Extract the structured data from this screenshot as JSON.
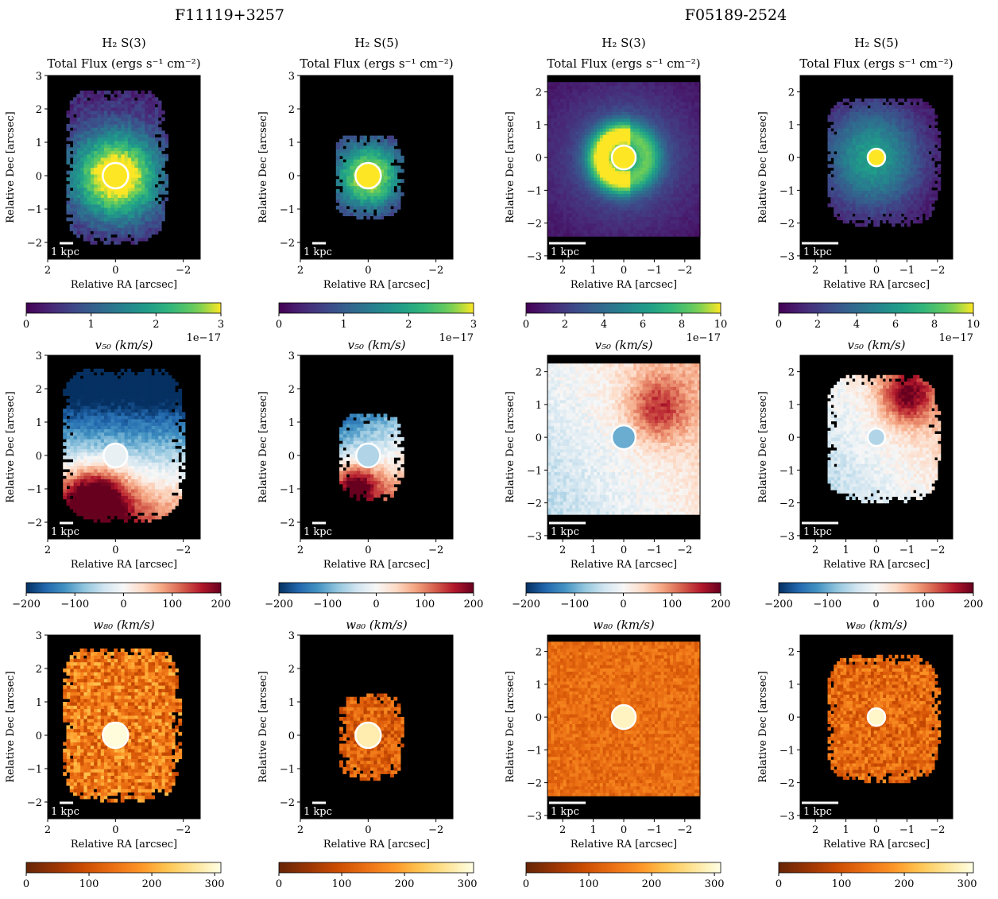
{
  "figure": {
    "galaxy_titles": [
      "F11119+3257",
      "F05189-2524"
    ],
    "row_titles": {
      "flux": [
        "H₂ S(3)",
        "H₂ S(5)",
        "H₂ S(3)",
        "H₂ S(5)"
      ],
      "flux_subtitle": "Total Flux (ergs s⁻¹ cm⁻²)",
      "v50": "v₅₀ (km/s)",
      "w80": "w₈₀ (km/s)"
    },
    "xlabel": "Relative RA [arcsec]",
    "ylabel": "Relative Dec [arcsec]",
    "scalebar_label": "1 kpc",
    "colors": {
      "background_map": "#000000",
      "nucleus_outline": "#ffffff"
    }
  },
  "chart_data": [
    {
      "type": "heatmap",
      "galaxy": "F11119+3257",
      "line": "H₂ S(3)",
      "quantity": "Total Flux",
      "xlim": [
        2,
        -2.5
      ],
      "ylim": [
        -2.5,
        3
      ],
      "xticks": [
        "2",
        "0",
        "−2"
      ],
      "xtick_values": [
        2,
        0,
        -2
      ],
      "yticks": [
        "−2",
        "−1",
        "0",
        "1",
        "2",
        "3"
      ],
      "ytick_values": [
        -2,
        -1,
        0,
        1,
        2,
        3
      ],
      "colormap": "viridis",
      "clim": [
        0,
        3
      ],
      "colorbar_ticks": [
        "0",
        "1",
        "2",
        "3"
      ],
      "colorbar_tick_values": [
        0,
        1,
        2,
        3
      ],
      "colorbar_offset": "1e−17",
      "scalebar_kpc_arcsec": 0.4,
      "rows": [
        "......................................................",
        "............m.m.m..mmm.mmmm..........................",
        ".........mmm.mmmmmmmmmmmmm.m.........................",
        "..........mmmmmmmmmmmmmmmmmm..........",
        "........mmmmmmmmmmmmmmmmmmmmm.........",
        ".......mmmmmmmmmmmmmmmmmmmmmm.........",
        ".......mmmmmmmmmmmmmmmmmmmmmm.........",
        "......mmmmmmmmmmmmmmmmmmmmmm..........",
        "......mmmmmmmmmmmmmmmmmmmmmmm.........",
        ".......mmmmmmmmmmmmmmmmmmmmmm.........",
        "........mmmmmmmmmmmmmmmmmmmmm.........",
        "........mmmmmmmmmmmmmmmmmmmm..........",
        "........m.mmmmmmmmmmmmmmmmmm..........",
        ".........mmmm.mmmmm.mmm.m.............",
        "......................................"
      ],
      "field": {
        "kind": "blob",
        "cx": 0,
        "cy": 0,
        "peak": 3.2,
        "scale": 0.9,
        "floor": 0.35
      },
      "mask": {
        "xmin": -1.55,
        "xmax": 1.45,
        "ymin": -2.05,
        "ymax": 2.55,
        "ragged": true
      },
      "nucleus": {
        "x": 0,
        "y": 0,
        "value": 3.0
      }
    },
    {
      "type": "heatmap",
      "galaxy": "F11119+3257",
      "line": "H₂ S(5)",
      "quantity": "Total Flux",
      "xlim": [
        2,
        -2.5
      ],
      "ylim": [
        -2.5,
        3
      ],
      "xticks": [
        "2",
        "0",
        "−2"
      ],
      "xtick_values": [
        2,
        0,
        -2
      ],
      "yticks": [
        "−2",
        "−1",
        "0",
        "1",
        "2",
        "3"
      ],
      "ytick_values": [
        -2,
        -1,
        0,
        1,
        2,
        3
      ],
      "colormap": "viridis",
      "clim": [
        0,
        3
      ],
      "colorbar_ticks": [
        "0",
        "1",
        "2",
        "3"
      ],
      "colorbar_tick_values": [
        0,
        1,
        2,
        3
      ],
      "colorbar_offset": "1e−17",
      "scalebar_kpc_arcsec": 0.4,
      "field": {
        "kind": "blob",
        "cx": 0,
        "cy": 0,
        "peak": 2.8,
        "scale": 0.7,
        "floor": 0.3
      },
      "mask": {
        "xmin": -1.05,
        "xmax": 0.95,
        "ymin": -1.3,
        "ymax": 1.2,
        "ragged": true
      },
      "nucleus": {
        "x": 0,
        "y": 0,
        "value": 3.0
      }
    },
    {
      "type": "heatmap",
      "galaxy": "F05189-2524",
      "line": "H₂ S(3)",
      "quantity": "Total Flux",
      "xlim": [
        2.5,
        -2.5
      ],
      "ylim": [
        -3.1,
        2.5
      ],
      "xticks": [
        "2",
        "1",
        "0",
        "−1",
        "−2"
      ],
      "xtick_values": [
        2,
        1,
        0,
        -1,
        -2
      ],
      "yticks": [
        "−3",
        "−2",
        "−1",
        "0",
        "1",
        "2"
      ],
      "ytick_values": [
        -3,
        -2,
        -1,
        0,
        1,
        2
      ],
      "colormap": "viridis",
      "clim": [
        0,
        10
      ],
      "colorbar_ticks": [
        "0",
        "2",
        "4",
        "6",
        "8",
        "10"
      ],
      "colorbar_tick_values": [
        0,
        2,
        4,
        6,
        8,
        10
      ],
      "colorbar_offset": "1e−17",
      "scalebar_kpc_arcsec": 1.2,
      "field": {
        "kind": "ring",
        "cx": 0,
        "cy": 0,
        "peak": 9.0,
        "scale": 1.5,
        "floor": 0.5
      },
      "mask": {
        "xmin": -2.5,
        "xmax": 2.5,
        "ymin": -2.4,
        "ymax": 2.25,
        "ragged": false
      },
      "nucleus": {
        "x": 0,
        "y": 0,
        "value": 10
      }
    },
    {
      "type": "heatmap",
      "galaxy": "F05189-2524",
      "line": "H₂ S(5)",
      "quantity": "Total Flux",
      "xlim": [
        2.5,
        -2.5
      ],
      "ylim": [
        -3.1,
        2.5
      ],
      "xticks": [
        "2",
        "1",
        "0",
        "−1",
        "−2"
      ],
      "xtick_values": [
        2,
        1,
        0,
        -1,
        -2
      ],
      "yticks": [
        "−3",
        "−2",
        "−1",
        "0",
        "1",
        "2"
      ],
      "ytick_values": [
        -3,
        -2,
        -1,
        0,
        1,
        2
      ],
      "colormap": "viridis",
      "clim": [
        0,
        10
      ],
      "colorbar_ticks": [
        "0",
        "2",
        "4",
        "6",
        "8",
        "10"
      ],
      "colorbar_tick_values": [
        0,
        2,
        4,
        6,
        8,
        10
      ],
      "colorbar_offset": "1e−17",
      "scalebar_kpc_arcsec": 1.2,
      "field": {
        "kind": "blob",
        "cx": 0.15,
        "cy": 0,
        "peak": 6.0,
        "scale": 1.1,
        "floor": 0.4
      },
      "mask": {
        "xmin": -2.1,
        "xmax": 1.6,
        "ymin": -2.1,
        "ymax": 1.8,
        "ragged": true
      },
      "nucleus": {
        "x": 0,
        "y": 0,
        "value": 10
      }
    },
    {
      "type": "heatmap",
      "galaxy": "F11119+3257",
      "line": "H₂ S(3)",
      "quantity": "v50",
      "xlim": [
        2,
        -2.5
      ],
      "ylim": [
        -2.5,
        3
      ],
      "xticks": [
        "2",
        "0",
        "−2"
      ],
      "xtick_values": [
        2,
        0,
        -2
      ],
      "yticks": [
        "−2",
        "−1",
        "0",
        "1",
        "2",
        "3"
      ],
      "ytick_values": [
        -2,
        -1,
        0,
        1,
        2,
        3
      ],
      "colormap": "RdBu_r",
      "clim": [
        -200,
        200
      ],
      "colorbar_ticks": [
        "−200",
        "−100",
        "0",
        "100",
        "200"
      ],
      "colorbar_tick_values": [
        -200,
        -100,
        0,
        100,
        200
      ],
      "colorbar_offset": "",
      "scalebar_kpc_arcsec": 0.4,
      "field": {
        "kind": "gradient",
        "base": -60,
        "gx": 0,
        "gy": -90,
        "blob": {
          "x": 0.6,
          "y": -1.4,
          "amp": 260,
          "s": 0.7
        }
      },
      "mask": {
        "xmin": -2.05,
        "xmax": 1.55,
        "ymin": -2.0,
        "ymax": 2.6,
        "ragged": true
      },
      "nucleus": {
        "x": 0,
        "y": 0,
        "value": -15
      }
    },
    {
      "type": "heatmap",
      "galaxy": "F11119+3257",
      "line": "H₂ S(5)",
      "quantity": "v50",
      "xlim": [
        2,
        -2.5
      ],
      "ylim": [
        -2.5,
        3
      ],
      "xticks": [
        "2",
        "0",
        "−2"
      ],
      "xtick_values": [
        2,
        0,
        -2
      ],
      "yticks": [
        "−2",
        "−1",
        "0",
        "1",
        "2",
        "3"
      ],
      "ytick_values": [
        -2,
        -1,
        0,
        1,
        2,
        3
      ],
      "colormap": "RdBu_r",
      "clim": [
        -200,
        200
      ],
      "colorbar_ticks": [
        "−200",
        "−100",
        "0",
        "100",
        "200"
      ],
      "colorbar_tick_values": [
        -200,
        -100,
        0,
        100,
        200
      ],
      "colorbar_offset": "",
      "scalebar_kpc_arcsec": 0.4,
      "field": {
        "kind": "gradient",
        "base": -30,
        "gx": -40,
        "gy": -80,
        "blob": {
          "x": 0.4,
          "y": -0.9,
          "amp": 200,
          "s": 0.5
        }
      },
      "mask": {
        "xmin": -1.05,
        "xmax": 0.8,
        "ymin": -1.35,
        "ymax": 1.2,
        "ragged": true
      },
      "nucleus": {
        "x": 0,
        "y": 0,
        "value": -60
      }
    },
    {
      "type": "heatmap",
      "galaxy": "F05189-2524",
      "line": "H₂ S(3)",
      "quantity": "v50",
      "xlim": [
        2.5,
        -2.5
      ],
      "ylim": [
        -3.1,
        2.5
      ],
      "xticks": [
        "2",
        "1",
        "0",
        "−1",
        "−2"
      ],
      "xtick_values": [
        2,
        1,
        0,
        -1,
        -2
      ],
      "yticks": [
        "−3",
        "−2",
        "−1",
        "0",
        "1",
        "2"
      ],
      "ytick_values": [
        -3,
        -2,
        -1,
        0,
        1,
        2
      ],
      "colormap": "RdBu_r",
      "clim": [
        -200,
        200
      ],
      "colorbar_ticks": [
        "−200",
        "−100",
        "0",
        "100",
        "200"
      ],
      "colorbar_tick_values": [
        -200,
        -100,
        0,
        100,
        200
      ],
      "colorbar_offset": "",
      "scalebar_kpc_arcsec": 1.2,
      "field": {
        "kind": "gradient",
        "base": 5,
        "gx": -15,
        "gy": 10,
        "blob": {
          "x": -1.1,
          "y": 0.9,
          "amp": 120,
          "s": 0.7
        }
      },
      "mask": {
        "xmin": -2.5,
        "xmax": 2.5,
        "ymin": -2.35,
        "ymax": 2.25,
        "ragged": false
      },
      "nucleus": {
        "x": 0,
        "y": 0,
        "value": -100
      }
    },
    {
      "type": "heatmap",
      "galaxy": "F05189-2524",
      "line": "H₂ S(5)",
      "quantity": "v50",
      "xlim": [
        2.5,
        -2.5
      ],
      "ylim": [
        -3.1,
        2.5
      ],
      "xticks": [
        "2",
        "1",
        "0",
        "−1",
        "−2"
      ],
      "xtick_values": [
        2,
        1,
        0,
        -1,
        -2
      ],
      "yticks": [
        "−3",
        "−2",
        "−1",
        "0",
        "1",
        "2"
      ],
      "ytick_values": [
        -3,
        -2,
        -1,
        0,
        1,
        2
      ],
      "colormap": "RdBu_r",
      "clim": [
        -200,
        200
      ],
      "colorbar_ticks": [
        "−200",
        "−100",
        "0",
        "100",
        "200"
      ],
      "colorbar_tick_values": [
        -200,
        -100,
        0,
        100,
        200
      ],
      "colorbar_offset": "",
      "scalebar_kpc_arcsec": 1.2,
      "field": {
        "kind": "gradient",
        "base": 0,
        "gx": -20,
        "gy": 15,
        "blob": {
          "x": -1.0,
          "y": 1.3,
          "amp": 160,
          "s": 0.6
        }
      },
      "mask": {
        "xmin": -2.1,
        "xmax": 1.6,
        "ymin": -2.0,
        "ymax": 1.85,
        "ragged": true
      },
      "nucleus": {
        "x": 0,
        "y": 0,
        "value": -60
      }
    },
    {
      "type": "heatmap",
      "galaxy": "F11119+3257",
      "line": "H₂ S(3)",
      "quantity": "w80",
      "xlim": [
        2,
        -2.5
      ],
      "ylim": [
        -2.5,
        3
      ],
      "xticks": [
        "2",
        "0",
        "−2"
      ],
      "xtick_values": [
        2,
        0,
        -2
      ],
      "yticks": [
        "−2",
        "−1",
        "0",
        "1",
        "2",
        "3"
      ],
      "ytick_values": [
        -2,
        -1,
        0,
        1,
        2,
        3
      ],
      "colormap": "YlOrBr_r",
      "clim": [
        0,
        310
      ],
      "colorbar_ticks": [
        "0",
        "100",
        "200",
        "300"
      ],
      "colorbar_tick_values": [
        0,
        100,
        200,
        300
      ],
      "colorbar_offset": "",
      "scalebar_kpc_arcsec": 0.4,
      "field": {
        "kind": "noise",
        "base": 150,
        "amp": 70
      },
      "mask": {
        "xmin": -1.95,
        "xmax": 1.55,
        "ymin": -2.0,
        "ymax": 2.6,
        "ragged": true
      },
      "nucleus": {
        "x": 0,
        "y": 0,
        "value": 305
      }
    },
    {
      "type": "heatmap",
      "galaxy": "F11119+3257",
      "line": "H₂ S(5)",
      "quantity": "w80",
      "xlim": [
        2,
        -2.5
      ],
      "ylim": [
        -2.5,
        3
      ],
      "xticks": [
        "2",
        "0",
        "−2"
      ],
      "xtick_values": [
        2,
        0,
        -2
      ],
      "yticks": [
        "−2",
        "−1",
        "0",
        "1",
        "2",
        "3"
      ],
      "ytick_values": [
        -2,
        -1,
        0,
        1,
        2,
        3
      ],
      "colormap": "YlOrBr_r",
      "clim": [
        0,
        310
      ],
      "colorbar_ticks": [
        "0",
        "100",
        "200",
        "300"
      ],
      "colorbar_tick_values": [
        0,
        100,
        200,
        300
      ],
      "colorbar_offset": "",
      "scalebar_kpc_arcsec": 0.4,
      "field": {
        "kind": "noise",
        "base": 120,
        "amp": 50
      },
      "mask": {
        "xmin": -1.05,
        "xmax": 0.8,
        "ymin": -1.35,
        "ymax": 1.2,
        "ragged": true
      },
      "nucleus": {
        "x": 0,
        "y": 0,
        "value": 280
      }
    },
    {
      "type": "heatmap",
      "galaxy": "F05189-2524",
      "line": "H₂ S(3)",
      "quantity": "w80",
      "xlim": [
        2.5,
        -2.5
      ],
      "ylim": [
        -3.1,
        2.5
      ],
      "xticks": [
        "2",
        "1",
        "0",
        "−1",
        "−2"
      ],
      "xtick_values": [
        2,
        1,
        0,
        -1,
        -2
      ],
      "yticks": [
        "−3",
        "−2",
        "−1",
        "0",
        "1",
        "2"
      ],
      "ytick_values": [
        -3,
        -2,
        -1,
        0,
        1,
        2
      ],
      "colormap": "YlOrBr_r",
      "clim": [
        0,
        310
      ],
      "colorbar_ticks": [
        "0",
        "100",
        "200",
        "300"
      ],
      "colorbar_tick_values": [
        0,
        100,
        200,
        300
      ],
      "colorbar_offset": "",
      "scalebar_kpc_arcsec": 1.2,
      "field": {
        "kind": "noise",
        "base": 135,
        "amp": 30
      },
      "mask": {
        "xmin": -2.5,
        "xmax": 2.5,
        "ymin": -2.4,
        "ymax": 2.25,
        "ragged": false
      },
      "nucleus": {
        "x": 0,
        "y": 0,
        "value": 290
      }
    },
    {
      "type": "heatmap",
      "galaxy": "F05189-2524",
      "line": "H₂ S(5)",
      "quantity": "w80",
      "xlim": [
        2.5,
        -2.5
      ],
      "ylim": [
        -3.1,
        2.5
      ],
      "xticks": [
        "2",
        "1",
        "0",
        "−1",
        "−2"
      ],
      "xtick_values": [
        2,
        1,
        0,
        -1,
        -2
      ],
      "yticks": [
        "−3",
        "−2",
        "−1",
        "0",
        "1",
        "2"
      ],
      "ytick_values": [
        -3,
        -2,
        -1,
        0,
        1,
        2
      ],
      "colormap": "YlOrBr_r",
      "clim": [
        0,
        310
      ],
      "colorbar_ticks": [
        "0",
        "100",
        "200",
        "300"
      ],
      "colorbar_tick_values": [
        0,
        100,
        200,
        300
      ],
      "colorbar_offset": "",
      "scalebar_kpc_arcsec": 1.2,
      "field": {
        "kind": "noise",
        "base": 130,
        "amp": 50
      },
      "mask": {
        "xmin": -2.1,
        "xmax": 1.6,
        "ymin": -2.0,
        "ymax": 1.85,
        "ragged": true
      },
      "nucleus": {
        "x": 0,
        "y": 0,
        "value": 295
      }
    }
  ]
}
